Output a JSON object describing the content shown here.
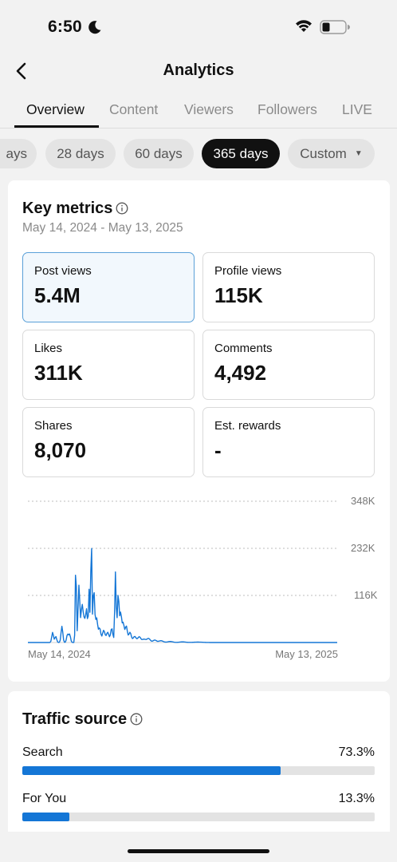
{
  "status_bar": {
    "time": "6:50"
  },
  "header": {
    "title": "Analytics"
  },
  "tabs": [
    {
      "label": "Overview"
    },
    {
      "label": "Content"
    },
    {
      "label": "Viewers"
    },
    {
      "label": "Followers"
    },
    {
      "label": "LIVE"
    }
  ],
  "range_chips": [
    {
      "label": "ays"
    },
    {
      "label": "28 days"
    },
    {
      "label": "60 days"
    },
    {
      "label": "365 days"
    },
    {
      "label": "Custom"
    }
  ],
  "key_metrics": {
    "title": "Key metrics",
    "date_range": "May 14, 2024 - May 13, 2025",
    "metrics": [
      {
        "label": "Post views",
        "value": "5.4M"
      },
      {
        "label": "Profile views",
        "value": "115K"
      },
      {
        "label": "Likes",
        "value": "311K"
      },
      {
        "label": "Comments",
        "value": "4,492"
      },
      {
        "label": "Shares",
        "value": "8,070"
      },
      {
        "label": "Est. rewards",
        "value": "-"
      }
    ]
  },
  "chart_data": {
    "type": "line",
    "y_ticks": [
      "348K",
      "232K",
      "116K"
    ],
    "ylim": [
      0,
      348000
    ],
    "x_labels": [
      "May 14, 2024",
      "May 13, 2025"
    ],
    "series_color": "#1476d6",
    "values": [
      0,
      0,
      0,
      0,
      0,
      0,
      0,
      0,
      0,
      0,
      0,
      0,
      0,
      0,
      0,
      0,
      0,
      0,
      0,
      0,
      0,
      0,
      0,
      0,
      0,
      0,
      0,
      0,
      0,
      0,
      0,
      0,
      0,
      0,
      0,
      0,
      0,
      0,
      0,
      0,
      0,
      0,
      0,
      0,
      0,
      0,
      0,
      0,
      0,
      0,
      0,
      0,
      0,
      0,
      0,
      0,
      0,
      0,
      0,
      0,
      0,
      0,
      0,
      0,
      0,
      0,
      0,
      0,
      0,
      0,
      0,
      0,
      0,
      0,
      0,
      0,
      0,
      0,
      0,
      0
    ]
  },
  "traffic_source": {
    "title": "Traffic source",
    "items": [
      {
        "label": "Search",
        "value": "73.3%",
        "percent": 73.3
      },
      {
        "label": "For You",
        "value": "13.3%",
        "percent": 13.3
      }
    ]
  }
}
